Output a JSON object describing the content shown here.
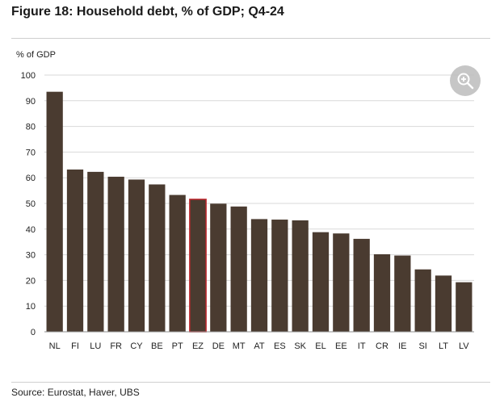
{
  "figure": {
    "title": "Figure 18: Household debt, % of GDP; Q4-24",
    "source": "Source: Eurostat, Haver, UBS",
    "zoom_icon": "zoom-in-icon"
  },
  "colors": {
    "bar": "#4a3b30",
    "highlight_outline": "#c0262d",
    "grid": "#d9d9d9"
  },
  "chart_data": {
    "type": "bar",
    "title": "Figure 18: Household debt, % of GDP; Q4-24",
    "xlabel": "",
    "ylabel": "% of GDP",
    "ylim": [
      0,
      100
    ],
    "yticks": [
      0,
      10,
      20,
      30,
      40,
      50,
      60,
      70,
      80,
      90,
      100
    ],
    "grid": true,
    "categories": [
      "NL",
      "FI",
      "LU",
      "FR",
      "CY",
      "BE",
      "PT",
      "EZ",
      "DE",
      "MT",
      "AT",
      "ES",
      "SK",
      "EL",
      "EE",
      "IT",
      "CR",
      "IE",
      "SI",
      "LT",
      "LV"
    ],
    "values": [
      93.5,
      63.2,
      62.3,
      60.4,
      59.3,
      57.4,
      53.3,
      51.6,
      49.9,
      48.8,
      43.9,
      43.7,
      43.4,
      38.8,
      38.3,
      36.2,
      30.2,
      29.7,
      24.3,
      21.9,
      19.3
    ],
    "highlighted_category": "EZ"
  }
}
